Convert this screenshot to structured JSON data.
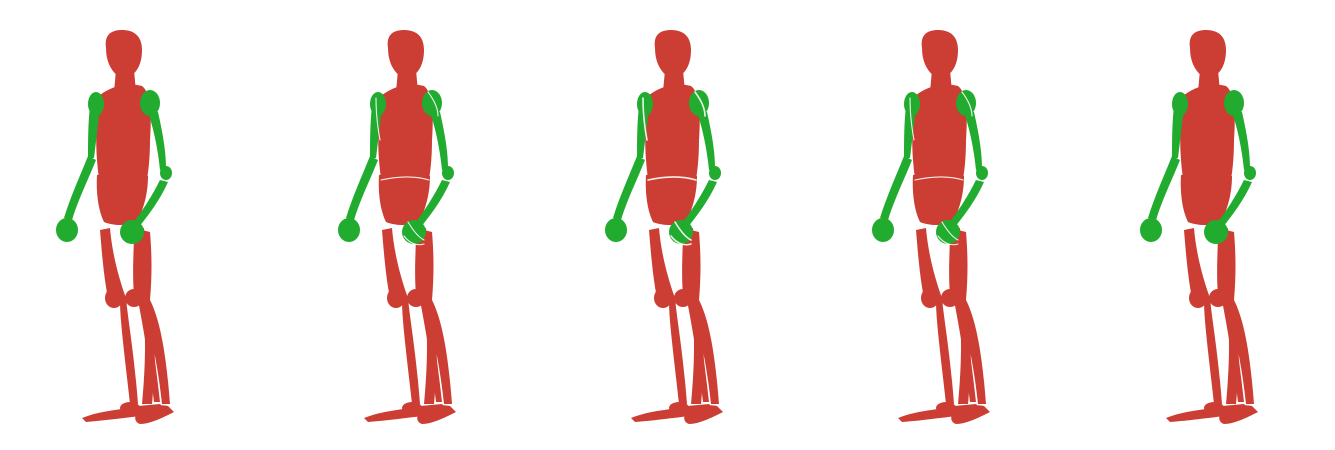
{
  "scene": {
    "background": "#ffffff",
    "body_color": "#cc3e34",
    "arm_color": "#21ab2f",
    "highlight_color": "#ffffff",
    "figures": [
      {
        "label": "",
        "variant": "base"
      },
      {
        "label": "",
        "variant": "highlighted"
      },
      {
        "label": "",
        "variant": "highlighted-strong"
      },
      {
        "label": "",
        "variant": "highlighted"
      },
      {
        "label": "",
        "variant": "base"
      }
    ]
  }
}
